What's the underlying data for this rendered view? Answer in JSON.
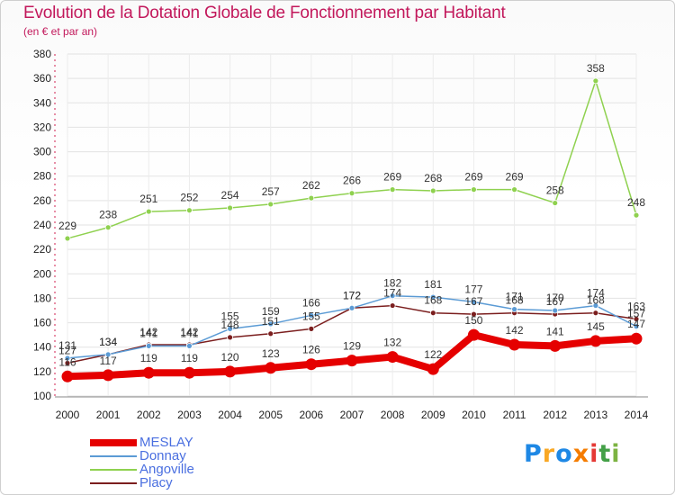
{
  "title": "Evolution de la Dotation Globale de Fonctionnement par Habitant",
  "subtitle": "(en € et par an)",
  "logo": {
    "text": "Proxiti",
    "letter_colors": [
      "#1e88e5",
      "#f9a825",
      "#1e88e5",
      "#f57c00",
      "#e53935",
      "#43a047",
      "#7cb342"
    ]
  },
  "chart_data": {
    "type": "line",
    "title": "Evolution de la Dotation Globale de Fonctionnement par Habitant",
    "subtitle": "(en € et par an)",
    "xlabel": "",
    "ylabel": "",
    "ylim": [
      100,
      380
    ],
    "yticks": [
      100,
      120,
      140,
      160,
      180,
      200,
      220,
      240,
      260,
      280,
      300,
      320,
      340,
      360,
      380
    ],
    "grid": true,
    "legend_position": "bottom-left",
    "x": [
      "2000",
      "2001",
      "2002",
      "2003",
      "2004",
      "2005",
      "2006",
      "2007",
      "2008",
      "2009",
      "2010",
      "2011",
      "2012",
      "2013",
      "2014"
    ],
    "series": [
      {
        "name": "MESLAY",
        "color": "#e50000",
        "values": [
          116,
          117,
          119,
          119,
          120,
          123,
          126,
          129,
          132,
          122,
          150,
          142,
          141,
          145,
          147
        ]
      },
      {
        "name": "Donnay",
        "color": "#5b9bd5",
        "values": [
          131,
          134,
          141,
          141,
          155,
          159,
          166,
          172,
          182,
          181,
          177,
          171,
          170,
          174,
          157
        ]
      },
      {
        "name": "Angoville",
        "color": "#8fd14f",
        "values": [
          229,
          238,
          251,
          252,
          254,
          257,
          262,
          266,
          269,
          268,
          269,
          269,
          258,
          358,
          248
        ]
      },
      {
        "name": "Placy",
        "color": "#7b1e1e",
        "values": [
          127,
          134,
          142,
          142,
          148,
          151,
          155,
          172,
          174,
          168,
          167,
          168,
          167,
          168,
          163
        ]
      }
    ]
  }
}
